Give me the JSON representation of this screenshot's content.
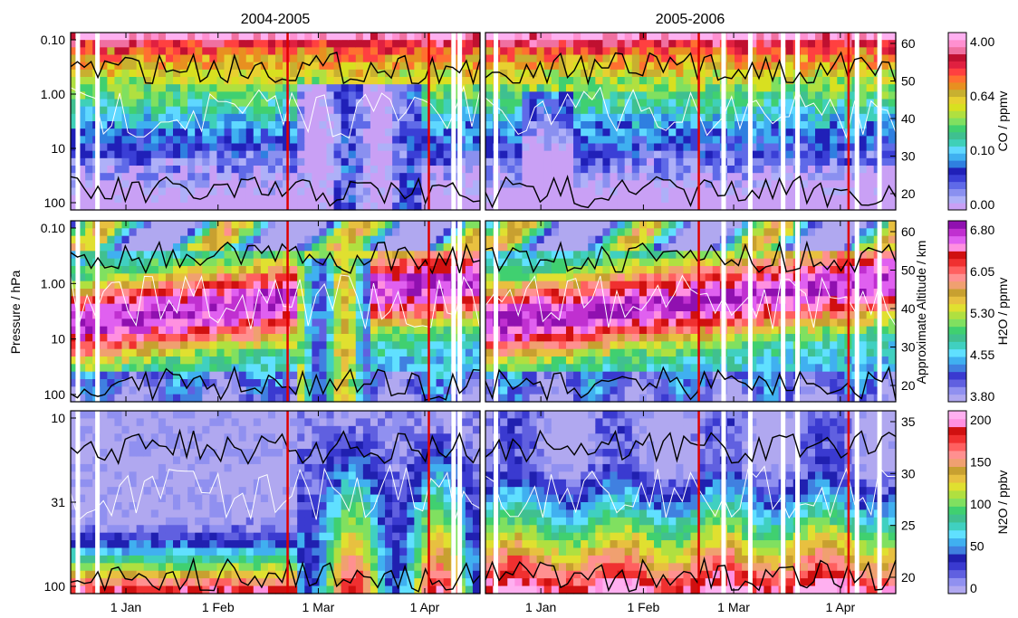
{
  "chart_data": {
    "type": "heatmap",
    "column_titles": [
      "2004-2005",
      "2005-2006"
    ],
    "left_axis_label": "Pressure / hPa",
    "right_axis_label": "Approximate Altitude / km",
    "x_ticks": [
      "1 Jan",
      "1 Feb",
      "1 Mar",
      "1 Apr"
    ],
    "panels": [
      {
        "species": "CO",
        "pressure_ticks": [
          "0.10",
          "1.00",
          "10",
          "100"
        ],
        "altitude_ticks": [
          "60",
          "50",
          "40",
          "30",
          "20"
        ],
        "colorbar_label": "CO / ppmv",
        "colorbar_ticks": [
          "4.00",
          "0.64",
          "0.10",
          "0.00"
        ],
        "colors": [
          "#c9a0f5",
          "#aeb0f8",
          "#8a90f0",
          "#5f6ae8",
          "#3a3fd6",
          "#2020b8",
          "#2f7fe0",
          "#3fb0f0",
          "#5fd8ff",
          "#3fd0b8",
          "#3fc090",
          "#40d070",
          "#80e060",
          "#b0e040",
          "#d8e020",
          "#e8d030",
          "#c8b030",
          "#e89020",
          "#ff7030",
          "#ff4040",
          "#e02040",
          "#c01030",
          "#f070a0",
          "#ff90d0",
          "#ffb0f0"
        ],
        "log_scale": true
      },
      {
        "species": "H2O",
        "pressure_ticks": [
          "0.10",
          "1.00",
          "10",
          "100"
        ],
        "altitude_ticks": [
          "60",
          "50",
          "40",
          "30",
          "20"
        ],
        "colorbar_label": "H2O / ppmv",
        "colorbar_ticks": [
          "6.80",
          "6.05",
          "5.30",
          "4.55",
          "3.80"
        ],
        "colors": [
          "#b0a8f0",
          "#9090f0",
          "#6060e0",
          "#3a3ad0",
          "#4080e0",
          "#40b0f0",
          "#60e0ff",
          "#40d0c0",
          "#40c090",
          "#40d070",
          "#80e060",
          "#b0e040",
          "#e0e030",
          "#e8c040",
          "#c8a030",
          "#f0a070",
          "#ff9090",
          "#ff6060",
          "#f03030",
          "#d01010",
          "#ff90e0",
          "#e060f0",
          "#c030d0",
          "#9010b0"
        ],
        "log_scale": false
      },
      {
        "species": "N2O",
        "pressure_ticks": [
          "10",
          "31",
          "100"
        ],
        "altitude_ticks": [
          "35",
          "30",
          "25",
          "20"
        ],
        "colorbar_label": "N2O / ppbv",
        "colorbar_ticks": [
          "200",
          "150",
          "100",
          "50",
          "0"
        ],
        "colors": [
          "#b0a8f0",
          "#9090f0",
          "#6060e0",
          "#3a3ad0",
          "#2020b0",
          "#4080e0",
          "#40b0f0",
          "#60e0ff",
          "#40d0c0",
          "#40c090",
          "#40d070",
          "#80e060",
          "#b0e040",
          "#e0e030",
          "#e8c040",
          "#c8a030",
          "#f0a070",
          "#ff9090",
          "#ff6060",
          "#f03030",
          "#d01010",
          "#ff90e0",
          "#ffb0f0"
        ],
        "log_scale": true
      }
    ]
  }
}
